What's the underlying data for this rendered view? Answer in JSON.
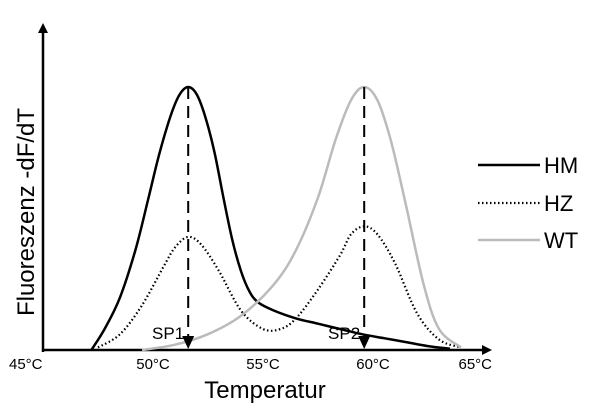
{
  "chart_data": {
    "type": "line",
    "title": "",
    "xlabel": "Temperatur",
    "ylabel": "Fluoreszenz -dF/dT",
    "x_ticks": [
      "45°C",
      "50°C",
      "55°C",
      "60°C",
      "65°C"
    ],
    "x_tick_values": [
      45,
      50,
      55,
      60,
      65
    ],
    "xlim": [
      45,
      65
    ],
    "ylim": [
      0,
      1.05
    ],
    "grid": false,
    "legend_position": "right",
    "series": [
      {
        "name": "HM",
        "color": "#000000",
        "style": "solid",
        "x": [
          47.2,
          47.8,
          48.5,
          49.2,
          49.8,
          50.3,
          50.8,
          51.2,
          51.6,
          52.0,
          52.4,
          52.8,
          53.2,
          53.6,
          54.0,
          54.4,
          54.8,
          55.5,
          56.5,
          57.5,
          58.5,
          59.5,
          60.5,
          61.5,
          62.5,
          63.5
        ],
        "y": [
          0.0,
          0.08,
          0.2,
          0.38,
          0.58,
          0.75,
          0.89,
          0.97,
          1.0,
          0.97,
          0.88,
          0.75,
          0.58,
          0.42,
          0.3,
          0.22,
          0.18,
          0.15,
          0.12,
          0.1,
          0.08,
          0.06,
          0.045,
          0.03,
          0.015,
          0.005
        ]
      },
      {
        "name": "HZ",
        "color": "#000000",
        "style": "dotted",
        "x": [
          47.5,
          48.5,
          49.5,
          50.5,
          51.0,
          51.6,
          52.2,
          53.0,
          54.0,
          55.0,
          55.8,
          56.5,
          57.5,
          58.5,
          59.0,
          59.6,
          60.2,
          61.0,
          62.0,
          63.0,
          64.0
        ],
        "y": [
          0.01,
          0.06,
          0.17,
          0.32,
          0.39,
          0.43,
          0.4,
          0.3,
          0.15,
          0.08,
          0.08,
          0.12,
          0.23,
          0.36,
          0.44,
          0.47,
          0.44,
          0.33,
          0.14,
          0.04,
          0.01
        ]
      },
      {
        "name": "WT",
        "color": "#bbbbbb",
        "style": "solid",
        "x": [
          49.5,
          51.0,
          52.5,
          54.0,
          55.5,
          56.5,
          57.5,
          58.3,
          59.0,
          59.6,
          60.2,
          60.8,
          61.5,
          62.3,
          63.0,
          64.0
        ],
        "y": [
          0.0,
          0.02,
          0.06,
          0.13,
          0.25,
          0.38,
          0.58,
          0.8,
          0.95,
          1.0,
          0.95,
          0.8,
          0.55,
          0.25,
          0.08,
          0.01
        ]
      }
    ],
    "annotations": [
      {
        "label": "SP1",
        "x": 51.6,
        "y": 1.0
      },
      {
        "label": "SP2",
        "x": 59.6,
        "y": 1.0
      }
    ]
  }
}
